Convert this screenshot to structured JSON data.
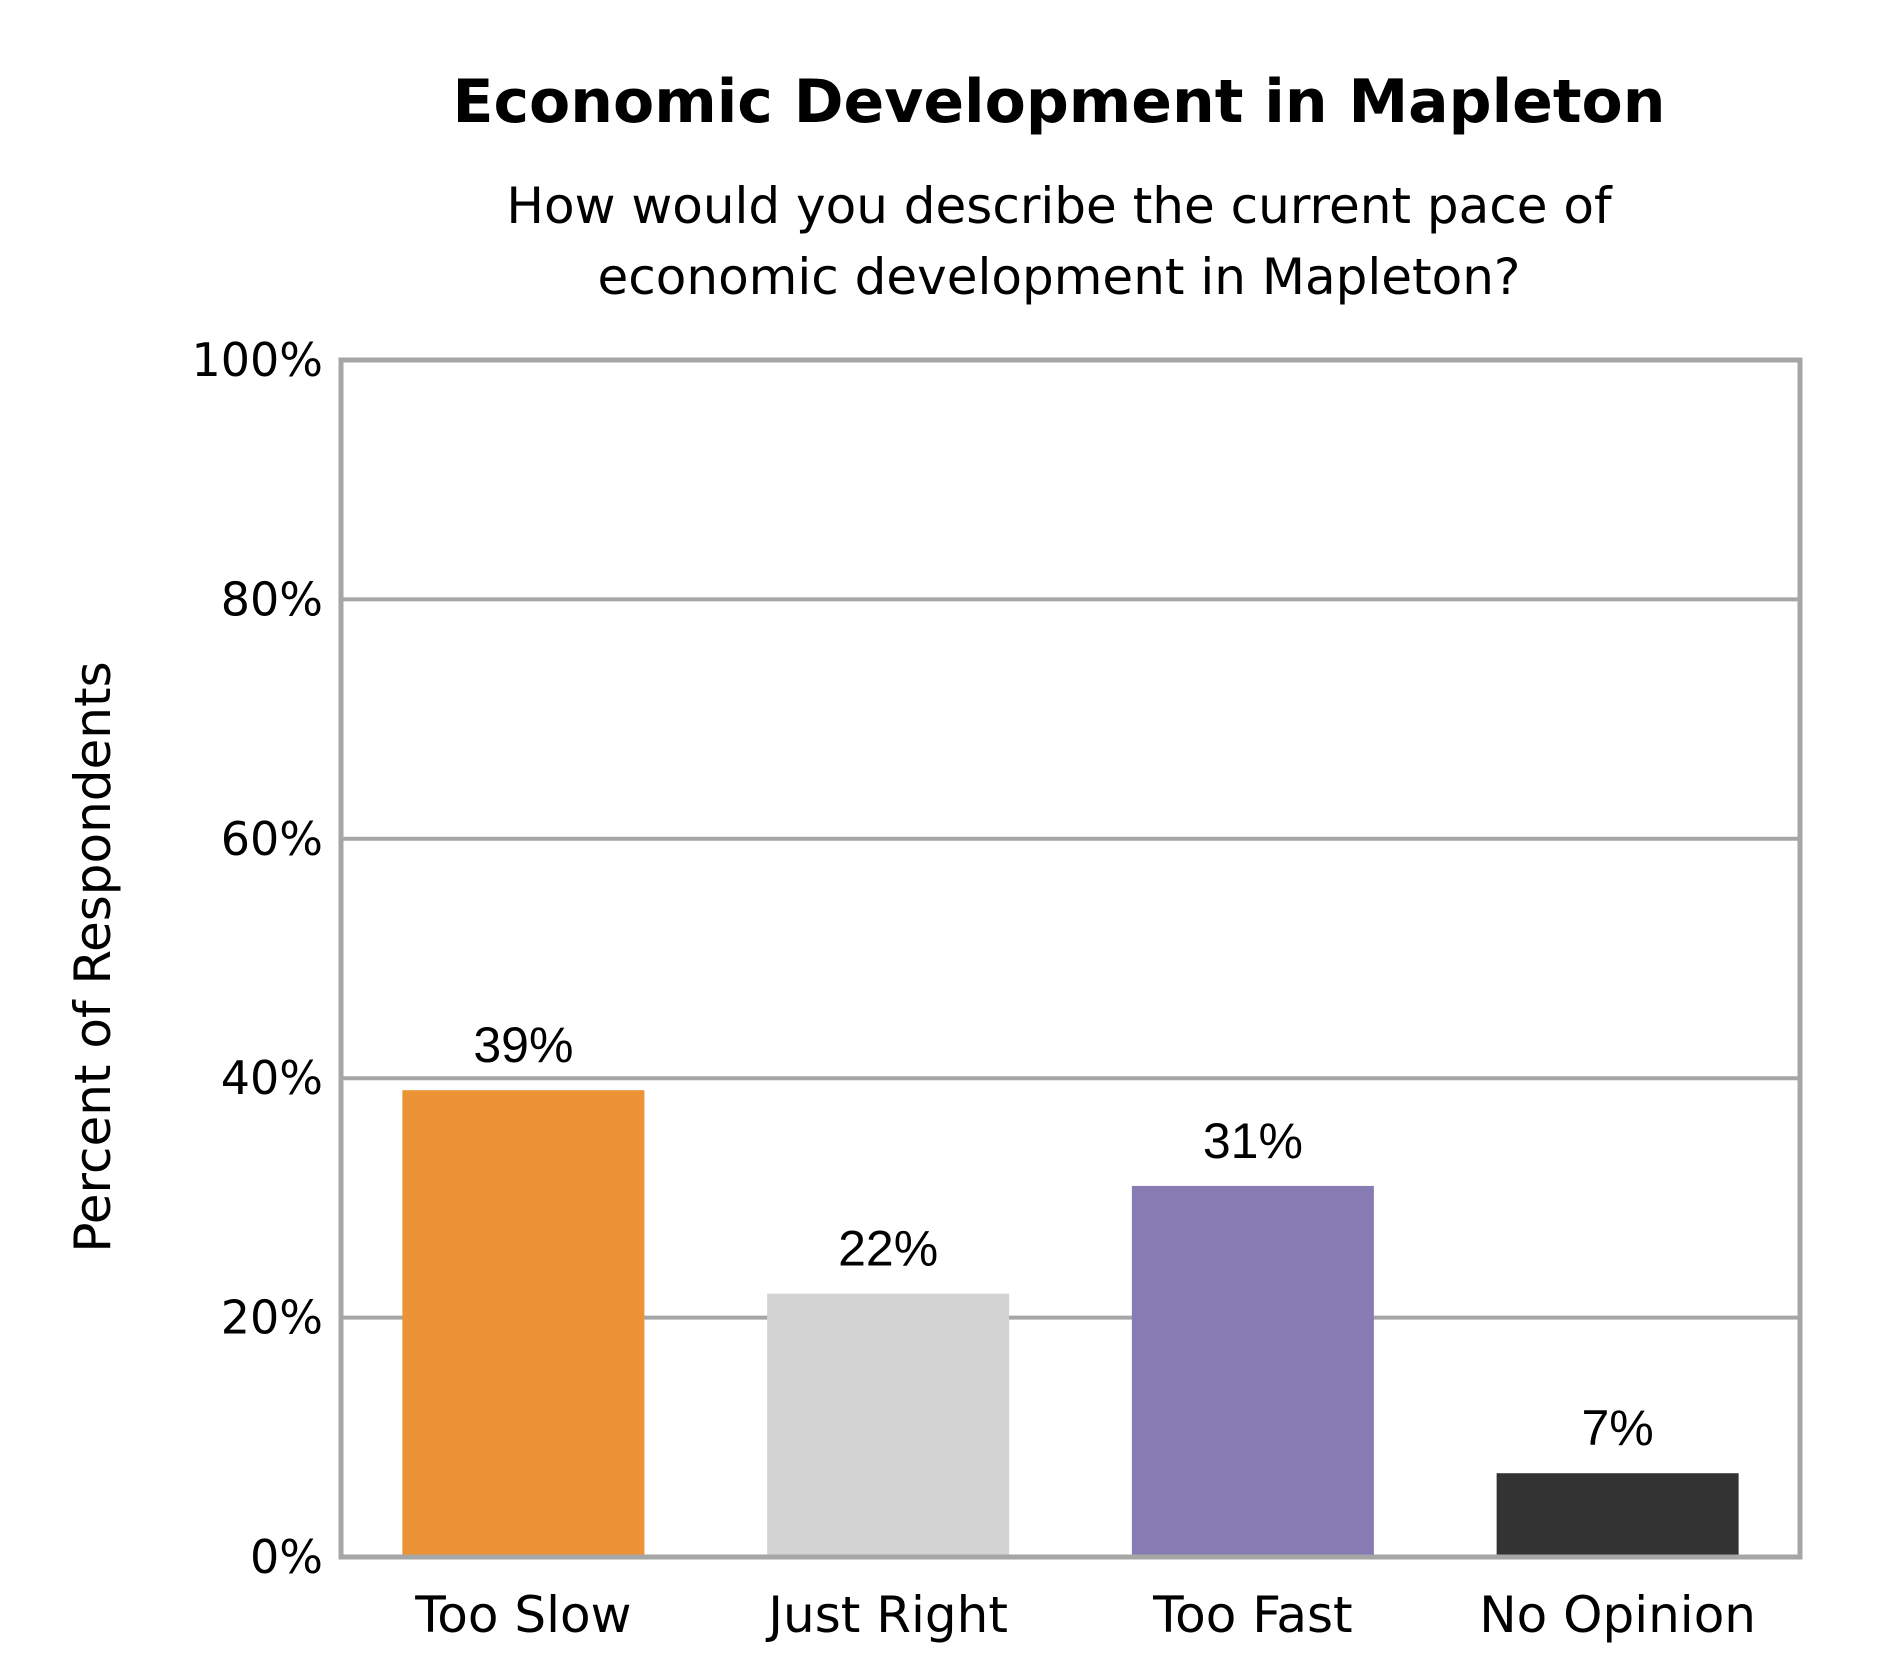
{
  "chart_data": {
    "type": "bar",
    "title": "Economic Development in Mapleton",
    "subtitle_lines": [
      "How would you describe the current pace of",
      "economic development in Mapleton?"
    ],
    "xlabel": "",
    "ylabel": "Percent of Respondents",
    "categories": [
      "Too Slow",
      "Just Right",
      "Too Fast",
      "No Opinion"
    ],
    "values": [
      39,
      22,
      31,
      7
    ],
    "value_labels": [
      "39%",
      "22%",
      "31%",
      "7%"
    ],
    "bar_colors": [
      "#EB9335",
      "#D3D3D3",
      "#877BB4",
      "#333333"
    ],
    "ylim": [
      0,
      100
    ],
    "y_ticks": [
      0,
      20,
      40,
      60,
      80,
      100
    ],
    "y_tick_labels": [
      "0%",
      "20%",
      "40%",
      "60%",
      "80%",
      "100%"
    ],
    "grid": true,
    "legend": "none"
  }
}
